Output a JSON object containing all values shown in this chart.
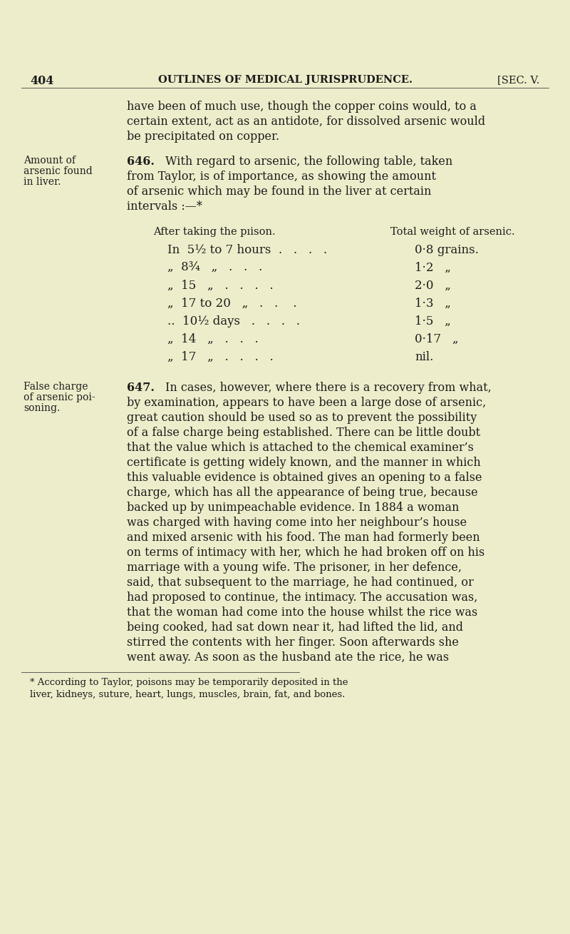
{
  "bg_color": "#eeedcb",
  "text_color": "#1c1c1c",
  "page_number": "404",
  "header_center": "OUTLINES OF MEDICAL JURISPRUDENCE.",
  "header_right": "[SEC. V.",
  "margin_label1_line1": "Amount of",
  "margin_label1_line2": "arsenic found",
  "margin_label1_line3": "in liver.",
  "margin_label2_line1": "False charge",
  "margin_label2_line2": "of arsenic poi-",
  "margin_label2_line3": "soning.",
  "section_num1": "646.",
  "section_num2": "647.",
  "table_header_left": "After taking the pıison.",
  "table_header_right": "Total weight of arsenic.",
  "footnote": "* According to Taylor, poisons may be temporarily deposited in the liver, kidneys, suture, heart, lungs, muscles, brain, fat, and bones."
}
